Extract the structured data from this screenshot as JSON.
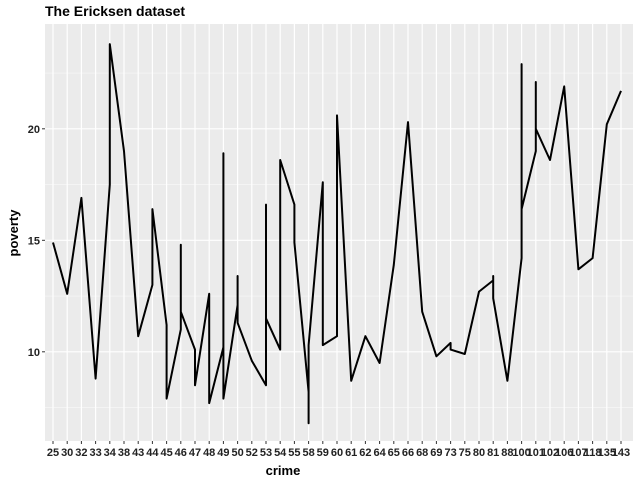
{
  "chart_data": {
    "type": "line",
    "title": "The Ericksen dataset",
    "xlabel": "crime",
    "ylabel": "poverty",
    "x_is_categorical": true,
    "categories": [
      "25",
      "30",
      "32",
      "33",
      "34",
      "38",
      "43",
      "44",
      "45",
      "46",
      "47",
      "48",
      "49",
      "50",
      "52",
      "53",
      "54",
      "55",
      "58",
      "59",
      "60",
      "61",
      "62",
      "64",
      "65",
      "66",
      "68",
      "69",
      "73",
      "75",
      "80",
      "81",
      "88",
      "100",
      "101",
      "102",
      "106",
      "107",
      "118",
      "135",
      "143"
    ],
    "series": [
      {
        "color": "#000000",
        "points": [
          [
            "25",
            14.9
          ],
          [
            "30",
            12.6
          ],
          [
            "32",
            16.9
          ],
          [
            "33",
            8.8
          ],
          [
            "34",
            17.5
          ],
          [
            "34",
            23.8
          ],
          [
            "38",
            19.0
          ],
          [
            "43",
            10.7
          ],
          [
            "44",
            13.0
          ],
          [
            "44",
            16.4
          ],
          [
            "45",
            11.2
          ],
          [
            "45",
            7.9
          ],
          [
            "46",
            11.0
          ],
          [
            "46",
            14.8
          ],
          [
            "46",
            11.8
          ],
          [
            "47",
            10.1
          ],
          [
            "47",
            8.5
          ],
          [
            "48",
            12.6
          ],
          [
            "48",
            7.7
          ],
          [
            "49",
            10.2
          ],
          [
            "49",
            18.9
          ],
          [
            "49",
            7.9
          ],
          [
            "50",
            12.1
          ],
          [
            "50",
            13.4
          ],
          [
            "50",
            11.3
          ],
          [
            "52",
            9.6
          ],
          [
            "53",
            8.5
          ],
          [
            "53",
            16.6
          ],
          [
            "53",
            11.5
          ],
          [
            "54",
            10.1
          ],
          [
            "54",
            18.6
          ],
          [
            "55",
            16.6
          ],
          [
            "55",
            14.9
          ],
          [
            "58",
            8.2
          ],
          [
            "58",
            6.8
          ],
          [
            "58",
            10.3
          ],
          [
            "59",
            17.6
          ],
          [
            "59",
            10.3
          ],
          [
            "60",
            10.7
          ],
          [
            "60",
            20.6
          ],
          [
            "61",
            8.7
          ],
          [
            "62",
            10.7
          ],
          [
            "64",
            9.5
          ],
          [
            "65",
            13.9
          ],
          [
            "66",
            20.3
          ],
          [
            "68",
            11.8
          ],
          [
            "69",
            9.8
          ],
          [
            "73",
            10.4
          ],
          [
            "73",
            10.1
          ],
          [
            "75",
            9.9
          ],
          [
            "80",
            12.7
          ],
          [
            "81",
            13.2
          ],
          [
            "81",
            13.4
          ],
          [
            "81",
            12.4
          ],
          [
            "88",
            8.7
          ],
          [
            "100",
            14.2
          ],
          [
            "100",
            22.9
          ],
          [
            "100",
            16.4
          ],
          [
            "101",
            19.0
          ],
          [
            "101",
            22.1
          ],
          [
            "101",
            20.0
          ],
          [
            "102",
            18.6
          ],
          [
            "106",
            21.9
          ],
          [
            "107",
            13.7
          ],
          [
            "118",
            14.2
          ],
          [
            "135",
            20.2
          ],
          [
            "143",
            21.7
          ]
        ]
      }
    ],
    "y_ticks": [
      10,
      15,
      20
    ],
    "ylim": [
      6.0,
      24.7
    ],
    "grid": true,
    "legend": "none"
  }
}
